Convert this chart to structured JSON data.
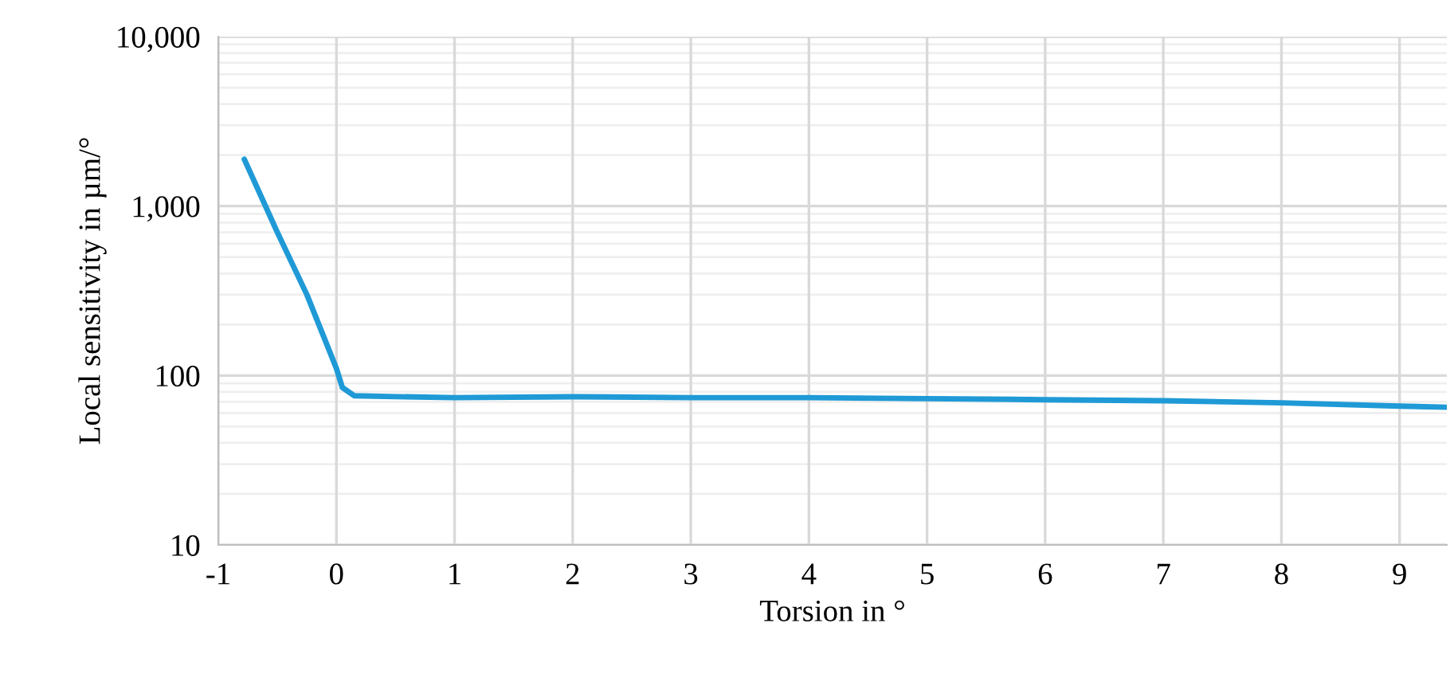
{
  "chart_data": {
    "type": "line",
    "xlabel": "Torsion in °",
    "ylabel": "Local sensitivity in µm/°",
    "x": [
      -0.78,
      -0.5,
      -0.25,
      0,
      0.05,
      0.15,
      0.5,
      1,
      2,
      3,
      4,
      5,
      6,
      7,
      8,
      9,
      9.4
    ],
    "series": [
      {
        "color": "#1f9ad6",
        "values": [
          1890,
          700,
          300,
          110,
          85,
          76,
          75,
          74,
          75,
          74,
          74,
          73,
          72,
          71,
          69,
          66,
          65
        ]
      }
    ],
    "log": "y",
    "xlim": [
      -1,
      9.4
    ],
    "ylim": [
      10,
      10000
    ],
    "xticks": [
      -1,
      0,
      1,
      2,
      3,
      4,
      5,
      6,
      7,
      8,
      9
    ],
    "yticks": [
      {
        "value": 10,
        "label": "10"
      },
      {
        "value": 100,
        "label": "100"
      },
      {
        "value": 1000,
        "label": "1,000"
      },
      {
        "value": 10000,
        "label": "10,000"
      }
    ],
    "grid": true,
    "legend": false,
    "marker": "none",
    "line_style": "solid"
  }
}
